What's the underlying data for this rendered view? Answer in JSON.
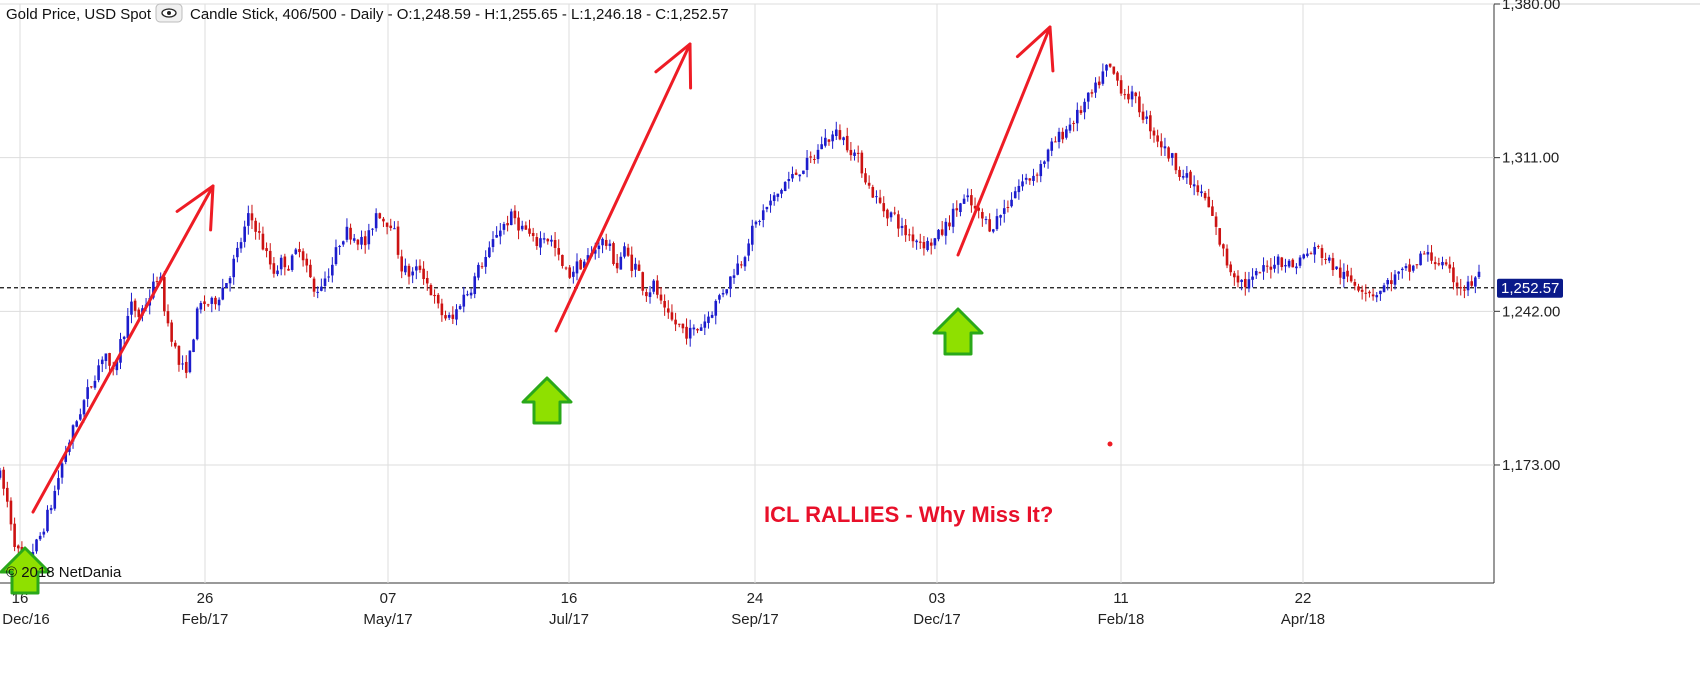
{
  "header": {
    "instrument": "Gold Price, USD Spot",
    "info": "Candle Stick, 406/500 - Daily - O:1,248.59 - H:1,255.65 - L:1,246.18 - C:1,252.57",
    "eye_icon": "eye-icon"
  },
  "watermark": "© 2018 NetDania",
  "annotation": "ICL RALLIES - Why Miss It?",
  "colors": {
    "up": "#1c1ccc",
    "down": "#cc1212",
    "arrow": "#ee1c25",
    "marker_fill": "#8fe000",
    "marker_stroke": "#2aa81a",
    "last_bg": "#0a1a8a",
    "grid": "#dddddd"
  },
  "chart_data": {
    "type": "candlestick",
    "title": "Gold Price, USD Spot",
    "ylim": [
      1120,
      1380
    ],
    "y_ticks": [
      "1,173.00",
      "1,242.00",
      "1,311.00",
      "1,380.00"
    ],
    "y_tick_values": [
      1173,
      1242,
      1311,
      1380
    ],
    "x_ticks": [
      {
        "day": "16",
        "month": "Dec/16"
      },
      {
        "day": "26",
        "month": "Feb/17"
      },
      {
        "day": "07",
        "month": "May/17"
      },
      {
        "day": "16",
        "month": "Jul/17"
      },
      {
        "day": "24",
        "month": "Sep/17"
      },
      {
        "day": "03",
        "month": "Dec/17"
      },
      {
        "day": "11",
        "month": "Feb/18"
      },
      {
        "day": "22",
        "month": "Apr/18"
      }
    ],
    "last": {
      "value": 1252.57,
      "label": "1,252.57"
    },
    "grid": true,
    "path": [
      [
        0,
        1168
      ],
      [
        6,
        1155
      ],
      [
        12,
        1135
      ],
      [
        18,
        1130
      ],
      [
        28,
        1138
      ],
      [
        38,
        1155
      ],
      [
        48,
        1178
      ],
      [
        58,
        1195
      ],
      [
        68,
        1210
      ],
      [
        78,
        1225
      ],
      [
        83,
        1210
      ],
      [
        88,
        1225
      ],
      [
        98,
        1245
      ],
      [
        103,
        1240
      ],
      [
        112,
        1250
      ],
      [
        118,
        1260
      ],
      [
        123,
        1240
      ],
      [
        128,
        1230
      ],
      [
        133,
        1218
      ],
      [
        137,
        1215
      ],
      [
        141,
        1222
      ],
      [
        146,
        1240
      ],
      [
        150,
        1246
      ],
      [
        157,
        1245
      ],
      [
        163,
        1250
      ],
      [
        170,
        1258
      ],
      [
        177,
        1270
      ],
      [
        185,
        1285
      ],
      [
        190,
        1280
      ],
      [
        196,
        1270
      ],
      [
        203,
        1260
      ],
      [
        210,
        1265
      ],
      [
        215,
        1262
      ],
      [
        222,
        1272
      ],
      [
        227,
        1264
      ],
      [
        233,
        1250
      ],
      [
        239,
        1255
      ],
      [
        246,
        1262
      ],
      [
        253,
        1275
      ],
      [
        258,
        1278
      ],
      [
        265,
        1275
      ],
      [
        272,
        1272
      ],
      [
        280,
        1288
      ],
      [
        285,
        1283
      ],
      [
        291,
        1282
      ],
      [
        298,
        1262
      ],
      [
        305,
        1258
      ],
      [
        312,
        1262
      ],
      [
        317,
        1255
      ],
      [
        324,
        1245
      ],
      [
        329,
        1240
      ],
      [
        336,
        1238
      ],
      [
        342,
        1247
      ],
      [
        349,
        1252
      ],
      [
        356,
        1262
      ],
      [
        363,
        1268
      ],
      [
        369,
        1278
      ],
      [
        376,
        1282
      ],
      [
        381,
        1285
      ],
      [
        386,
        1280
      ],
      [
        391,
        1278
      ],
      [
        397,
        1272
      ],
      [
        404,
        1276
      ],
      [
        410,
        1273
      ],
      [
        417,
        1262
      ],
      [
        422,
        1258
      ],
      [
        427,
        1262
      ],
      [
        433,
        1264
      ],
      [
        440,
        1268
      ],
      [
        445,
        1274
      ],
      [
        451,
        1272
      ],
      [
        458,
        1262
      ],
      [
        463,
        1270
      ],
      [
        469,
        1263
      ],
      [
        473,
        1262
      ],
      [
        479,
        1250
      ],
      [
        486,
        1254
      ],
      [
        492,
        1242
      ],
      [
        497,
        1238
      ],
      [
        503,
        1236
      ],
      [
        511,
        1232
      ],
      [
        518,
        1234
      ],
      [
        526,
        1240
      ],
      [
        530,
        1244
      ],
      [
        535,
        1250
      ],
      [
        541,
        1255
      ],
      [
        546,
        1262
      ],
      [
        551,
        1265
      ],
      [
        556,
        1275
      ],
      [
        562,
        1282
      ],
      [
        566,
        1286
      ],
      [
        571,
        1290
      ],
      [
        577,
        1294
      ],
      [
        583,
        1300
      ],
      [
        588,
        1302
      ],
      [
        594,
        1306
      ],
      [
        599,
        1308
      ],
      [
        606,
        1312
      ],
      [
        610,
        1318
      ],
      [
        616,
        1320
      ],
      [
        622,
        1322
      ],
      [
        628,
        1318
      ],
      [
        634,
        1313
      ],
      [
        639,
        1308
      ],
      [
        645,
        1298
      ],
      [
        651,
        1292
      ],
      [
        657,
        1287
      ],
      [
        664,
        1285
      ],
      [
        670,
        1278
      ],
      [
        676,
        1276
      ],
      [
        682,
        1274
      ],
      [
        688,
        1272
      ],
      [
        694,
        1274
      ],
      [
        700,
        1278
      ],
      [
        706,
        1284
      ],
      [
        712,
        1290
      ],
      [
        718,
        1292
      ],
      [
        724,
        1287
      ],
      [
        730,
        1283
      ],
      [
        736,
        1280
      ],
      [
        743,
        1286
      ],
      [
        748,
        1290
      ],
      [
        753,
        1296
      ],
      [
        759,
        1300
      ],
      [
        765,
        1302
      ],
      [
        771,
        1306
      ],
      [
        777,
        1312
      ],
      [
        783,
        1318
      ],
      [
        789,
        1322
      ],
      [
        794,
        1326
      ],
      [
        800,
        1330
      ],
      [
        806,
        1336
      ],
      [
        812,
        1340
      ],
      [
        818,
        1348
      ],
      [
        823,
        1352
      ],
      [
        829,
        1346
      ],
      [
        835,
        1340
      ],
      [
        841,
        1338
      ],
      [
        847,
        1332
      ],
      [
        853,
        1326
      ],
      [
        859,
        1320
      ],
      [
        865,
        1314
      ],
      [
        871,
        1310
      ],
      [
        877,
        1304
      ],
      [
        883,
        1300
      ],
      [
        889,
        1296
      ],
      [
        895,
        1292
      ],
      [
        900,
        1284
      ],
      [
        906,
        1272
      ],
      [
        912,
        1262
      ],
      [
        918,
        1258
      ],
      [
        924,
        1254
      ],
      [
        930,
        1256
      ],
      [
        936,
        1260
      ],
      [
        942,
        1262
      ],
      [
        948,
        1266
      ],
      [
        954,
        1264
      ],
      [
        960,
        1262
      ],
      [
        966,
        1266
      ],
      [
        972,
        1268
      ],
      [
        978,
        1270
      ],
      [
        984,
        1266
      ],
      [
        990,
        1262
      ],
      [
        996,
        1258
      ],
      [
        1002,
        1256
      ],
      [
        1008,
        1254
      ],
      [
        1014,
        1252
      ],
      [
        1020,
        1250
      ],
      [
        1026,
        1252
      ],
      [
        1032,
        1256
      ],
      [
        1038,
        1258
      ],
      [
        1044,
        1260
      ],
      [
        1050,
        1262
      ],
      [
        1056,
        1268
      ],
      [
        1062,
        1266
      ],
      [
        1068,
        1264
      ],
      [
        1074,
        1260
      ],
      [
        1080,
        1256
      ],
      [
        1086,
        1252
      ],
      [
        1092,
        1254
      ],
      [
        1098,
        1258
      ]
    ],
    "series_x_end": 1479
  }
}
